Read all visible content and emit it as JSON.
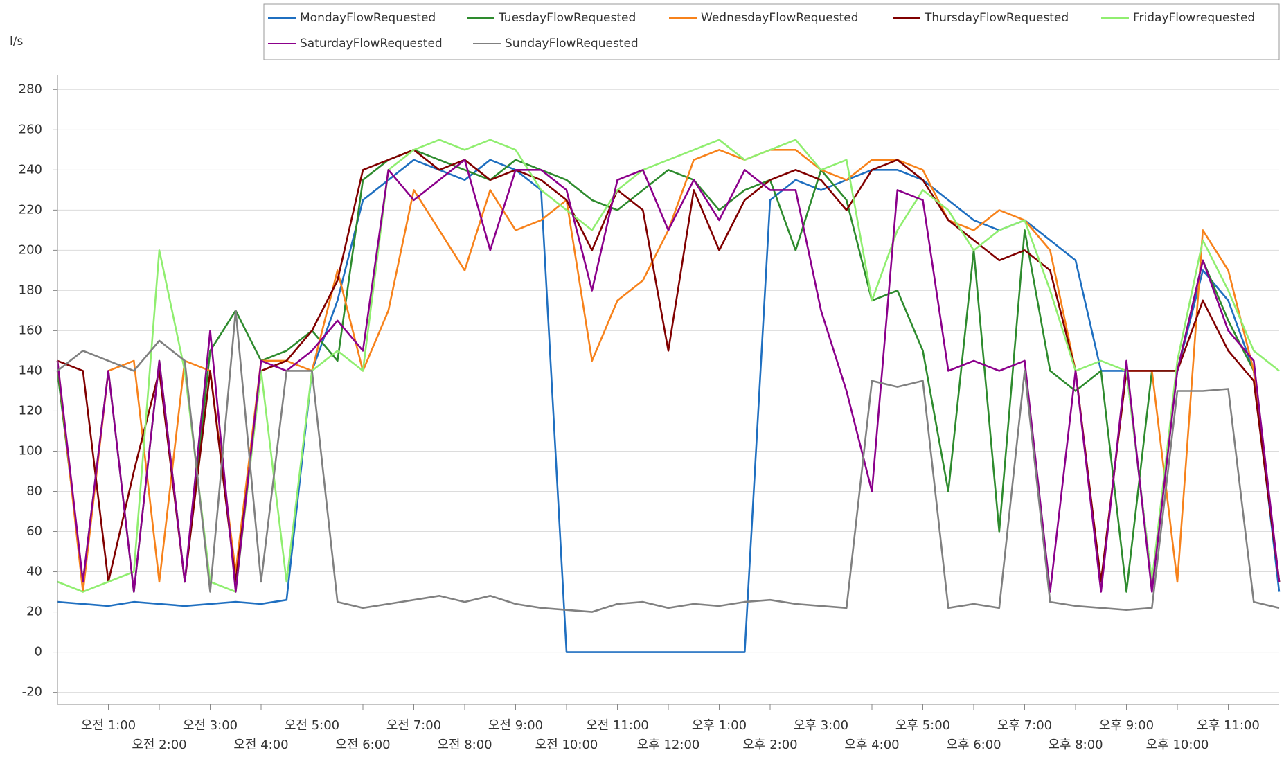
{
  "chart_data": {
    "type": "line",
    "y_axis_label": "l/s",
    "x": [
      0,
      0.5,
      1,
      1.5,
      2,
      2.5,
      3,
      3.5,
      4,
      4.5,
      5,
      5.5,
      6,
      6.5,
      7,
      7.5,
      8,
      8.5,
      9,
      9.5,
      10,
      10.5,
      11,
      11.5,
      12,
      12.5,
      13,
      13.5,
      14,
      14.5,
      15,
      15.5,
      16,
      16.5,
      17,
      17.5,
      18,
      18.5,
      19,
      19.5,
      20,
      20.5,
      21,
      21.5,
      22,
      22.5,
      23,
      23.5,
      24
    ],
    "xlim": [
      0,
      24
    ],
    "xticks": [
      {
        "value": 1,
        "label": "오전 1:00"
      },
      {
        "value": 2,
        "label": "오전 2:00"
      },
      {
        "value": 3,
        "label": "오전 3:00"
      },
      {
        "value": 4,
        "label": "오전 4:00"
      },
      {
        "value": 5,
        "label": "오전 5:00"
      },
      {
        "value": 6,
        "label": "오전 6:00"
      },
      {
        "value": 7,
        "label": "오전 7:00"
      },
      {
        "value": 8,
        "label": "오전 8:00"
      },
      {
        "value": 9,
        "label": "오전 9:00"
      },
      {
        "value": 10,
        "label": "오전 10:00"
      },
      {
        "value": 11,
        "label": "오전 11:00"
      },
      {
        "value": 12,
        "label": "오후 12:00"
      },
      {
        "value": 13,
        "label": "오후 1:00"
      },
      {
        "value": 14,
        "label": "오후 2:00"
      },
      {
        "value": 15,
        "label": "오후 3:00"
      },
      {
        "value": 16,
        "label": "오후 4:00"
      },
      {
        "value": 17,
        "label": "오후 5:00"
      },
      {
        "value": 18,
        "label": "오후 6:00"
      },
      {
        "value": 19,
        "label": "오후 7:00"
      },
      {
        "value": 20,
        "label": "오후 8:00"
      },
      {
        "value": 21,
        "label": "오후 9:00"
      },
      {
        "value": 22,
        "label": "오후 10:00"
      },
      {
        "value": 23,
        "label": "오후 11:00"
      }
    ],
    "ylim": [
      -26,
      287
    ],
    "yticks": [
      -20,
      0,
      20,
      40,
      60,
      80,
      100,
      120,
      140,
      160,
      180,
      200,
      220,
      240,
      260,
      280
    ],
    "grid": true,
    "legend": "top",
    "series": [
      {
        "name": "MondayFlowRequested",
        "color": "#1f6fc0",
        "values": [
          25,
          24,
          23,
          25,
          24,
          23,
          24,
          25,
          24,
          26,
          140,
          175,
          225,
          235,
          245,
          240,
          235,
          245,
          240,
          230,
          0,
          0,
          0,
          0,
          0,
          0,
          0,
          0,
          225,
          235,
          230,
          235,
          240,
          240,
          235,
          225,
          215,
          210,
          215,
          205,
          195,
          140,
          140,
          35,
          140,
          190,
          175,
          140,
          30
        ]
      },
      {
        "name": "TuesdayFlowRequested",
        "color": "#2e8b2e",
        "values": [
          140,
          35,
          140,
          30,
          145,
          35,
          150,
          170,
          145,
          150,
          160,
          145,
          235,
          245,
          250,
          245,
          240,
          235,
          245,
          240,
          235,
          225,
          220,
          230,
          240,
          235,
          220,
          230,
          235,
          200,
          240,
          225,
          175,
          180,
          150,
          80,
          200,
          60,
          210,
          140,
          130,
          140,
          30,
          140,
          140,
          195,
          165,
          140,
          35
        ]
      },
      {
        "name": "WednesdayFlowRequested",
        "color": "#f7821b",
        "values": [
          145,
          30,
          140,
          145,
          35,
          145,
          140,
          40,
          145,
          145,
          140,
          190,
          140,
          170,
          230,
          210,
          190,
          230,
          210,
          215,
          225,
          145,
          175,
          185,
          210,
          245,
          250,
          245,
          250,
          250,
          240,
          235,
          245,
          245,
          240,
          215,
          210,
          220,
          215,
          200,
          140,
          35,
          140,
          140,
          35,
          210,
          190,
          140,
          35
        ]
      },
      {
        "name": "ThursdayFlowRequested",
        "color": "#800000",
        "values": [
          145,
          140,
          35,
          90,
          140,
          35,
          140,
          35,
          140,
          145,
          160,
          185,
          240,
          245,
          250,
          240,
          245,
          235,
          240,
          235,
          225,
          200,
          230,
          220,
          150,
          230,
          200,
          225,
          235,
          240,
          235,
          220,
          240,
          245,
          235,
          215,
          205,
          195,
          200,
          190,
          140,
          35,
          140,
          140,
          140,
          175,
          150,
          135,
          35
        ]
      },
      {
        "name": "FridayFlowrequested",
        "color": "#90ee70",
        "values": [
          35,
          30,
          35,
          40,
          200,
          140,
          35,
          30,
          140,
          35,
          140,
          150,
          140,
          240,
          250,
          255,
          250,
          255,
          250,
          230,
          220,
          210,
          230,
          240,
          245,
          250,
          255,
          245,
          250,
          255,
          240,
          245,
          175,
          210,
          230,
          220,
          200,
          210,
          215,
          180,
          140,
          145,
          140,
          35,
          145,
          205,
          180,
          150,
          140
        ]
      },
      {
        "name": "SaturdayFlowRequested",
        "color": "#8b008b",
        "values": [
          145,
          35,
          140,
          30,
          145,
          35,
          160,
          30,
          145,
          140,
          150,
          165,
          150,
          240,
          225,
          235,
          245,
          200,
          240,
          240,
          230,
          180,
          235,
          240,
          210,
          235,
          215,
          240,
          230,
          230,
          170,
          130,
          80,
          230,
          225,
          140,
          145,
          140,
          145,
          30,
          140,
          30,
          145,
          30,
          140,
          195,
          160,
          145,
          35
        ]
      },
      {
        "name": "SundayFlowRequested",
        "color": "#808080",
        "values": [
          140,
          150,
          145,
          140,
          155,
          145,
          30,
          170,
          35,
          140,
          140,
          25,
          22,
          24,
          26,
          28,
          25,
          28,
          24,
          22,
          21,
          20,
          24,
          25,
          22,
          24,
          23,
          25,
          26,
          24,
          23,
          22,
          135,
          132,
          135,
          22,
          24,
          22,
          140,
          25,
          23,
          22,
          21,
          22,
          130,
          130,
          131,
          25,
          22
        ]
      }
    ]
  }
}
